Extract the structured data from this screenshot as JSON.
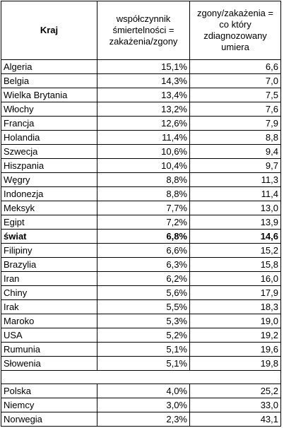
{
  "headers": {
    "country": "Kraj",
    "ratio": "współczynnik śmiertelności = zakażenia/zgony",
    "every": "zgony/zakażenia = co który zdiagnozowany umiera"
  },
  "rows": [
    {
      "country": "Algeria",
      "ratio": "15,1%",
      "every": "6,6"
    },
    {
      "country": "Belgia",
      "ratio": "14,3%",
      "every": "7,0"
    },
    {
      "country": "Wielka Brytania",
      "ratio": "13,4%",
      "every": "7,5"
    },
    {
      "country": "Włochy",
      "ratio": "13,2%",
      "every": "7,6"
    },
    {
      "country": "Francja",
      "ratio": "12,6%",
      "every": "7,9"
    },
    {
      "country": "Holandia",
      "ratio": "11,4%",
      "every": "8,8"
    },
    {
      "country": "Szwecja",
      "ratio": "10,6%",
      "every": "9,4"
    },
    {
      "country": "Hiszpania",
      "ratio": "10,4%",
      "every": "9,7"
    },
    {
      "country": "Węgry",
      "ratio": "8,8%",
      "every": "11,3"
    },
    {
      "country": "Indonezja",
      "ratio": "8,8%",
      "every": "11,4"
    },
    {
      "country": "Meksyk",
      "ratio": "7,7%",
      "every": "13,0"
    },
    {
      "country": "Egipt",
      "ratio": "7,2%",
      "every": "13,9"
    },
    {
      "country": "świat",
      "ratio": "6,8%",
      "every": "14,6"
    },
    {
      "country": "Filipiny",
      "ratio": "6,6%",
      "every": "15,2"
    },
    {
      "country": "Brazylia",
      "ratio": "6,3%",
      "every": "15,8"
    },
    {
      "country": "Iran",
      "ratio": "6,2%",
      "every": "16,0"
    },
    {
      "country": "Chiny",
      "ratio": "5,6%",
      "every": "17,9"
    },
    {
      "country": "Irak",
      "ratio": "5,5%",
      "every": "18,3"
    },
    {
      "country": "Maroko",
      "ratio": "5,3%",
      "every": "19,0"
    },
    {
      "country": "USA",
      "ratio": "5,2%",
      "every": "19,2"
    },
    {
      "country": "Rumunia",
      "ratio": "5,1%",
      "every": "19,6"
    },
    {
      "country": "Słowenia",
      "ratio": "5,1%",
      "every": "19,8"
    },
    {
      "country": "Polska",
      "ratio": "4,0%",
      "every": "25,2"
    },
    {
      "country": "Niemcy",
      "ratio": "3,0%",
      "every": "33,0"
    },
    {
      "country": "Norwegia",
      "ratio": "2,3%",
      "every": "43,1"
    }
  ]
}
